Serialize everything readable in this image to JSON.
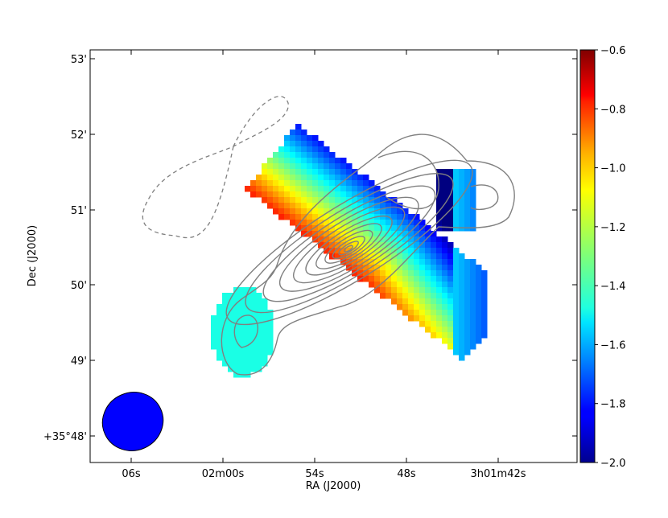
{
  "chart_data": {
    "type": "heatmap",
    "title": "",
    "xlabel": "RA (J2000)",
    "ylabel": "Dec (J2000)",
    "x_ticks": [
      "06s",
      "02m00s",
      "54s",
      "48s",
      "3h01m42s"
    ],
    "y_ticks": [
      "+35°48'",
      "49'",
      "50'",
      "51'",
      "52'",
      "53'"
    ],
    "colorbar": {
      "vmin": -2.0,
      "vmax": -0.6,
      "ticks": [
        "-2.0",
        "-1.8",
        "-1.6",
        "-1.4",
        "-1.2",
        "-1.0",
        "-0.8",
        "-0.6"
      ],
      "colormap": "jet"
    },
    "grid": false,
    "contours": {
      "color": "#808080",
      "positive_style": "solid",
      "negative_style": "dashed"
    },
    "beam": {
      "shape": "ellipse",
      "color": "#0000ff"
    }
  }
}
